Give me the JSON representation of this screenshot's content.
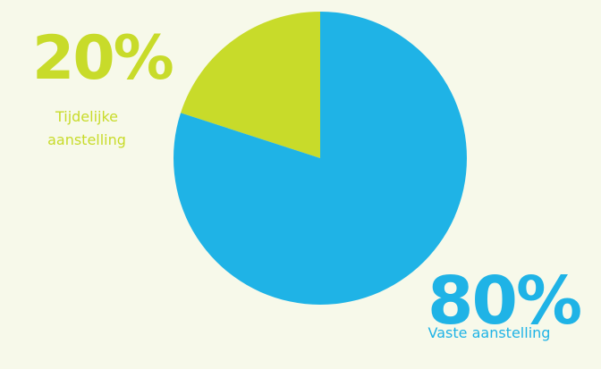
{
  "chart_data": {
    "type": "pie",
    "slices": [
      {
        "label": "Tijdelijke aanstelling",
        "label_lines": [
          "Tijdelijke",
          "aanstelling"
        ],
        "value": 20,
        "value_label": "20%",
        "color": "#c8db2a"
      },
      {
        "label": "Vaste aanstelling",
        "label_lines": [
          "Vaste aanstelling"
        ],
        "value": 80,
        "value_label": "80%",
        "color": "#1fb3e6"
      }
    ],
    "start_angle": "12 o'clock",
    "direction": "counter-clockwise",
    "legend": "none",
    "title": ""
  }
}
